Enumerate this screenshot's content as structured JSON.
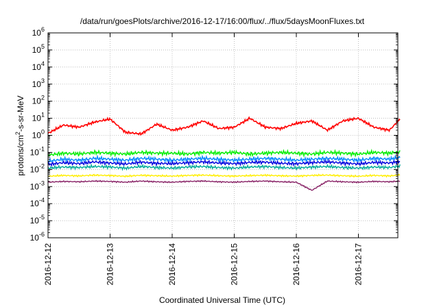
{
  "chart_data": {
    "type": "line",
    "title": "/data/run/goesPlots/archive/2016-12-17/16:00/flux/../flux/5daysMoonFluxes.txt",
    "xlabel": "Coordinated Universal Time (UTC)",
    "ylabel": "protons/cm2-s-sr-MeV",
    "ylabel_parts": [
      "protons/cm",
      "2",
      "-s-sr-MeV"
    ],
    "yscale": "log",
    "ylim": [
      1e-06,
      1000000.0
    ],
    "xlim": [
      "2016-12-12 00:00",
      "2016-12-17 16:00"
    ],
    "grid": true,
    "x_ticks": [
      "2016-12-12",
      "2016-12-13",
      "2016-12-14",
      "2016-12-15",
      "2016-12-16",
      "2016-12-17"
    ],
    "y_ticks": [
      {
        "base": "10",
        "exp": "-6"
      },
      {
        "base": "10",
        "exp": "-5"
      },
      {
        "base": "10",
        "exp": "-4"
      },
      {
        "base": "10",
        "exp": "-3"
      },
      {
        "base": "10",
        "exp": "-2"
      },
      {
        "base": "10",
        "exp": "-1"
      },
      {
        "base": "10",
        "exp": "0"
      },
      {
        "base": "10",
        "exp": "1"
      },
      {
        "base": "10",
        "exp": "2"
      },
      {
        "base": "10",
        "exp": "3"
      },
      {
        "base": "10",
        "exp": "4"
      },
      {
        "base": "10",
        "exp": "5"
      },
      {
        "base": "10",
        "exp": "6"
      }
    ],
    "x_days": [
      0.0,
      0.25,
      0.5,
      0.75,
      1.0,
      1.25,
      1.5,
      1.75,
      2.0,
      2.25,
      2.5,
      2.75,
      3.0,
      3.25,
      3.5,
      3.75,
      4.0,
      4.25,
      4.5,
      4.75,
      5.0,
      5.25,
      5.5,
      5.67
    ],
    "series": [
      {
        "color": "#ff0000",
        "values": [
          1.3,
          4.0,
          3.0,
          6.0,
          9.0,
          1.5,
          1.2,
          4.5,
          2.0,
          3.0,
          7.0,
          2.5,
          3.0,
          10.0,
          3.0,
          2.5,
          5.0,
          7.0,
          2.0,
          7.0,
          10.0,
          3.0,
          2.0,
          9.0
        ]
      },
      {
        "color": "#00ee00",
        "values": [
          0.07,
          0.09,
          0.08,
          0.1,
          0.09,
          0.08,
          0.1,
          0.09,
          0.09,
          0.08,
          0.1,
          0.09,
          0.1,
          0.08,
          0.09,
          0.1,
          0.09,
          0.08,
          0.1,
          0.09,
          0.08,
          0.1,
          0.09,
          0.11
        ]
      },
      {
        "color": "#0088ff",
        "values": [
          0.03,
          0.04,
          0.035,
          0.045,
          0.04,
          0.035,
          0.045,
          0.04,
          0.035,
          0.04,
          0.045,
          0.04,
          0.035,
          0.04,
          0.045,
          0.04,
          0.035,
          0.04,
          0.045,
          0.04,
          0.035,
          0.045,
          0.04,
          0.05
        ]
      },
      {
        "color": "#0000dd",
        "values": [
          0.02,
          0.025,
          0.022,
          0.028,
          0.024,
          0.021,
          0.027,
          0.023,
          0.022,
          0.025,
          0.028,
          0.024,
          0.022,
          0.026,
          0.027,
          0.023,
          0.022,
          0.025,
          0.028,
          0.024,
          0.021,
          0.026,
          0.024,
          0.03
        ]
      },
      {
        "color": "#00aa99",
        "values": [
          0.012,
          0.014,
          0.013,
          0.015,
          0.014,
          0.012,
          0.015,
          0.013,
          0.012,
          0.014,
          0.015,
          0.013,
          0.012,
          0.014,
          0.015,
          0.013,
          0.012,
          0.014,
          0.015,
          0.013,
          0.012,
          0.014,
          0.013,
          0.016
        ]
      },
      {
        "color": "#ffee00",
        "values": [
          0.004,
          0.0045,
          0.0042,
          0.0047,
          0.0044,
          0.004,
          0.0046,
          0.0043,
          0.0041,
          0.0045,
          0.0047,
          0.0043,
          0.0041,
          0.0044,
          0.0046,
          0.0043,
          0.0041,
          0.0045,
          0.0047,
          0.0043,
          0.004,
          0.0045,
          0.0042,
          0.0048
        ]
      },
      {
        "color": "#882266",
        "values": [
          0.0018,
          0.002,
          0.0019,
          0.0021,
          0.002,
          0.0018,
          0.0021,
          0.0019,
          0.0018,
          0.002,
          0.0021,
          0.0019,
          0.0018,
          0.002,
          0.0021,
          0.0019,
          0.0018,
          0.0006,
          0.0021,
          0.0019,
          0.0018,
          0.002,
          0.0019,
          0.0021
        ]
      }
    ]
  }
}
